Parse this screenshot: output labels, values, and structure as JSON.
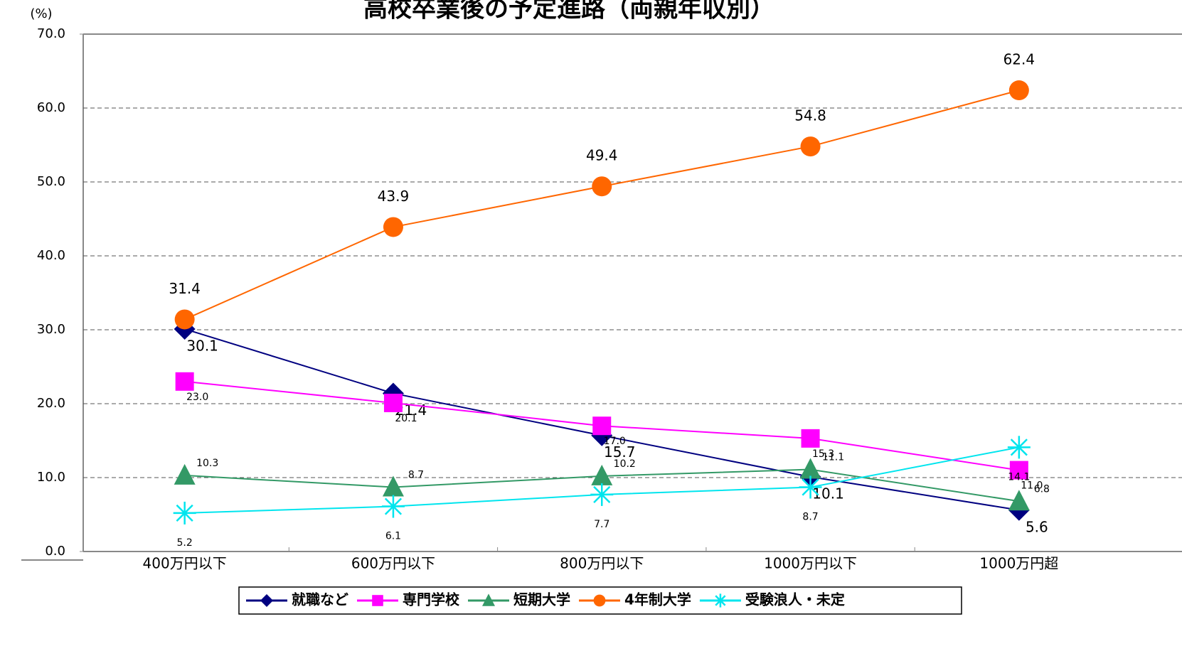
{
  "chart_data": {
    "type": "line",
    "title": "高校卒業後の予定進路（両親年収別）",
    "y_label": "(%)",
    "categories": [
      "400万円以下",
      "600万円以下",
      "800万円以下",
      "1000万円以下",
      "1000万円超"
    ],
    "ylim": [
      0,
      70
    ],
    "yticks": [
      {
        "value": 0,
        "label": "0.0"
      },
      {
        "value": 10,
        "label": "10.0"
      },
      {
        "value": 20,
        "label": "20.0"
      },
      {
        "value": 30,
        "label": "30.0"
      },
      {
        "value": 40,
        "label": "40.0"
      },
      {
        "value": 50,
        "label": "50.0"
      },
      {
        "value": 60,
        "label": "60.0"
      },
      {
        "value": 70,
        "label": "70.0"
      }
    ],
    "grid": true,
    "legend": "bottom",
    "series": [
      {
        "name": "就職など",
        "color": "#000080",
        "marker": "diamond",
        "values": [
          30.1,
          21.4,
          15.7,
          10.1,
          5.6
        ],
        "value_labels": [
          "30.1",
          "21.4",
          "15.7",
          "10.1",
          "5.6"
        ]
      },
      {
        "name": "専門学校",
        "color": "#ff00ff",
        "marker": "square",
        "values": [
          23,
          20.1,
          17,
          15.3,
          11
        ],
        "value_labels": [
          "23.0",
          "20.1",
          "17.0",
          "15.3",
          "11.0"
        ]
      },
      {
        "name": "短期大学",
        "color": "#339966",
        "marker": "triangle",
        "values": [
          10.3,
          8.7,
          10.2,
          11.1,
          6.8
        ],
        "value_labels": [
          "10.3",
          "8.7",
          "10.2",
          "11.1",
          "6.8"
        ]
      },
      {
        "name": "4年制大学",
        "color": "#ff6600",
        "marker": "circle",
        "values": [
          31.4,
          43.9,
          49.4,
          54.8,
          62.4
        ],
        "value_labels": [
          "31.4",
          "43.9",
          "49.4",
          "54.8",
          "62.4"
        ]
      },
      {
        "name": "受験浪人・未定",
        "color": "#00e5ee",
        "marker": "asterisk",
        "values": [
          5.2,
          6.1,
          7.7,
          8.7,
          14.1
        ],
        "value_labels": [
          "5.2",
          "6.1",
          "7.7",
          "8.7",
          "14.1"
        ]
      }
    ]
  }
}
